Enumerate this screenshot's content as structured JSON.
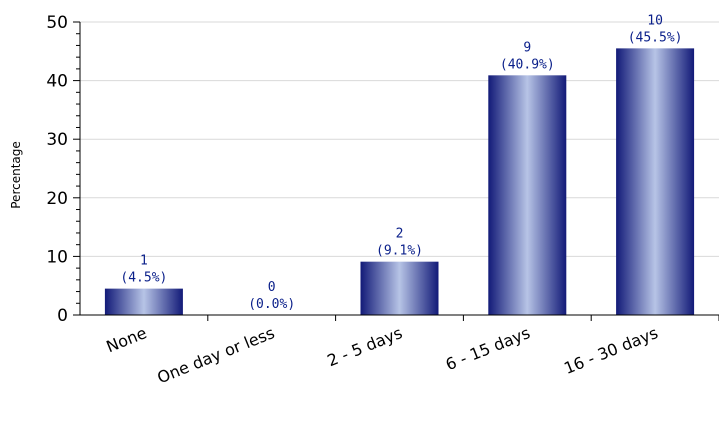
{
  "chart_data": {
    "type": "bar",
    "title": "",
    "xlabel": "",
    "ylabel": "Percentage",
    "categories": [
      "None",
      "One day or less",
      "2 - 5 days",
      "6 - 15 days",
      "16 - 30 days"
    ],
    "counts": [
      1,
      0,
      2,
      9,
      10
    ],
    "values": [
      4.5,
      0.0,
      9.1,
      40.9,
      45.5
    ],
    "data_labels": [
      [
        "1",
        "(4.5%)"
      ],
      [
        "0",
        "(0.0%)"
      ],
      [
        "2",
        "(9.1%)"
      ],
      [
        "9",
        "(40.9%)"
      ],
      [
        "10",
        "(45.5%)"
      ]
    ],
    "ylim": [
      0,
      50
    ],
    "yticks": [
      0,
      10,
      20,
      30,
      40,
      50
    ],
    "y_minor_step": 2,
    "grid": true,
    "legend": "none",
    "colors": {
      "bar_dark": "#121a78",
      "bar_light": "#b7c4e6",
      "grid": "#d9d9d9",
      "axis": "#000000",
      "data_label": "#0a1f8a"
    }
  }
}
